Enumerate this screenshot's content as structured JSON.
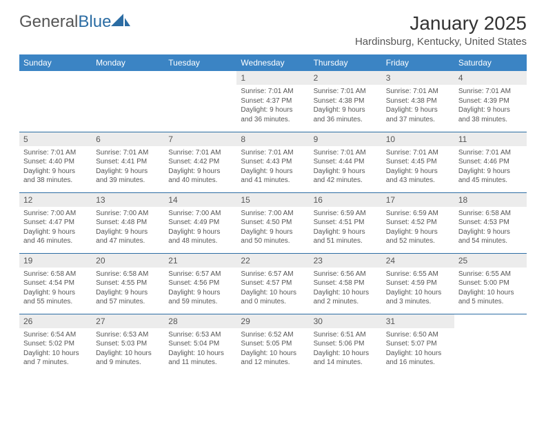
{
  "logo": {
    "text_gray": "General",
    "text_blue": "Blue",
    "sail_color": "#2b6ca3"
  },
  "title": "January 2025",
  "subtitle": "Hardinsburg, Kentucky, United States",
  "colors": {
    "header_bg": "#3b84c4",
    "header_text": "#ffffff",
    "cell_border": "#2b6ca3",
    "daynum_bg": "#ececec",
    "text": "#555555"
  },
  "day_headers": [
    "Sunday",
    "Monday",
    "Tuesday",
    "Wednesday",
    "Thursday",
    "Friday",
    "Saturday"
  ],
  "weeks": [
    [
      null,
      null,
      null,
      {
        "n": "1",
        "sr": "7:01 AM",
        "ss": "4:37 PM",
        "dl": "9 hours and 36 minutes."
      },
      {
        "n": "2",
        "sr": "7:01 AM",
        "ss": "4:38 PM",
        "dl": "9 hours and 36 minutes."
      },
      {
        "n": "3",
        "sr": "7:01 AM",
        "ss": "4:38 PM",
        "dl": "9 hours and 37 minutes."
      },
      {
        "n": "4",
        "sr": "7:01 AM",
        "ss": "4:39 PM",
        "dl": "9 hours and 38 minutes."
      }
    ],
    [
      {
        "n": "5",
        "sr": "7:01 AM",
        "ss": "4:40 PM",
        "dl": "9 hours and 38 minutes."
      },
      {
        "n": "6",
        "sr": "7:01 AM",
        "ss": "4:41 PM",
        "dl": "9 hours and 39 minutes."
      },
      {
        "n": "7",
        "sr": "7:01 AM",
        "ss": "4:42 PM",
        "dl": "9 hours and 40 minutes."
      },
      {
        "n": "8",
        "sr": "7:01 AM",
        "ss": "4:43 PM",
        "dl": "9 hours and 41 minutes."
      },
      {
        "n": "9",
        "sr": "7:01 AM",
        "ss": "4:44 PM",
        "dl": "9 hours and 42 minutes."
      },
      {
        "n": "10",
        "sr": "7:01 AM",
        "ss": "4:45 PM",
        "dl": "9 hours and 43 minutes."
      },
      {
        "n": "11",
        "sr": "7:01 AM",
        "ss": "4:46 PM",
        "dl": "9 hours and 45 minutes."
      }
    ],
    [
      {
        "n": "12",
        "sr": "7:00 AM",
        "ss": "4:47 PM",
        "dl": "9 hours and 46 minutes."
      },
      {
        "n": "13",
        "sr": "7:00 AM",
        "ss": "4:48 PM",
        "dl": "9 hours and 47 minutes."
      },
      {
        "n": "14",
        "sr": "7:00 AM",
        "ss": "4:49 PM",
        "dl": "9 hours and 48 minutes."
      },
      {
        "n": "15",
        "sr": "7:00 AM",
        "ss": "4:50 PM",
        "dl": "9 hours and 50 minutes."
      },
      {
        "n": "16",
        "sr": "6:59 AM",
        "ss": "4:51 PM",
        "dl": "9 hours and 51 minutes."
      },
      {
        "n": "17",
        "sr": "6:59 AM",
        "ss": "4:52 PM",
        "dl": "9 hours and 52 minutes."
      },
      {
        "n": "18",
        "sr": "6:58 AM",
        "ss": "4:53 PM",
        "dl": "9 hours and 54 minutes."
      }
    ],
    [
      {
        "n": "19",
        "sr": "6:58 AM",
        "ss": "4:54 PM",
        "dl": "9 hours and 55 minutes."
      },
      {
        "n": "20",
        "sr": "6:58 AM",
        "ss": "4:55 PM",
        "dl": "9 hours and 57 minutes."
      },
      {
        "n": "21",
        "sr": "6:57 AM",
        "ss": "4:56 PM",
        "dl": "9 hours and 59 minutes."
      },
      {
        "n": "22",
        "sr": "6:57 AM",
        "ss": "4:57 PM",
        "dl": "10 hours and 0 minutes."
      },
      {
        "n": "23",
        "sr": "6:56 AM",
        "ss": "4:58 PM",
        "dl": "10 hours and 2 minutes."
      },
      {
        "n": "24",
        "sr": "6:55 AM",
        "ss": "4:59 PM",
        "dl": "10 hours and 3 minutes."
      },
      {
        "n": "25",
        "sr": "6:55 AM",
        "ss": "5:00 PM",
        "dl": "10 hours and 5 minutes."
      }
    ],
    [
      {
        "n": "26",
        "sr": "6:54 AM",
        "ss": "5:02 PM",
        "dl": "10 hours and 7 minutes."
      },
      {
        "n": "27",
        "sr": "6:53 AM",
        "ss": "5:03 PM",
        "dl": "10 hours and 9 minutes."
      },
      {
        "n": "28",
        "sr": "6:53 AM",
        "ss": "5:04 PM",
        "dl": "10 hours and 11 minutes."
      },
      {
        "n": "29",
        "sr": "6:52 AM",
        "ss": "5:05 PM",
        "dl": "10 hours and 12 minutes."
      },
      {
        "n": "30",
        "sr": "6:51 AM",
        "ss": "5:06 PM",
        "dl": "10 hours and 14 minutes."
      },
      {
        "n": "31",
        "sr": "6:50 AM",
        "ss": "5:07 PM",
        "dl": "10 hours and 16 minutes."
      },
      null
    ]
  ],
  "labels": {
    "sunrise": "Sunrise:",
    "sunset": "Sunset:",
    "daylight": "Daylight:"
  }
}
